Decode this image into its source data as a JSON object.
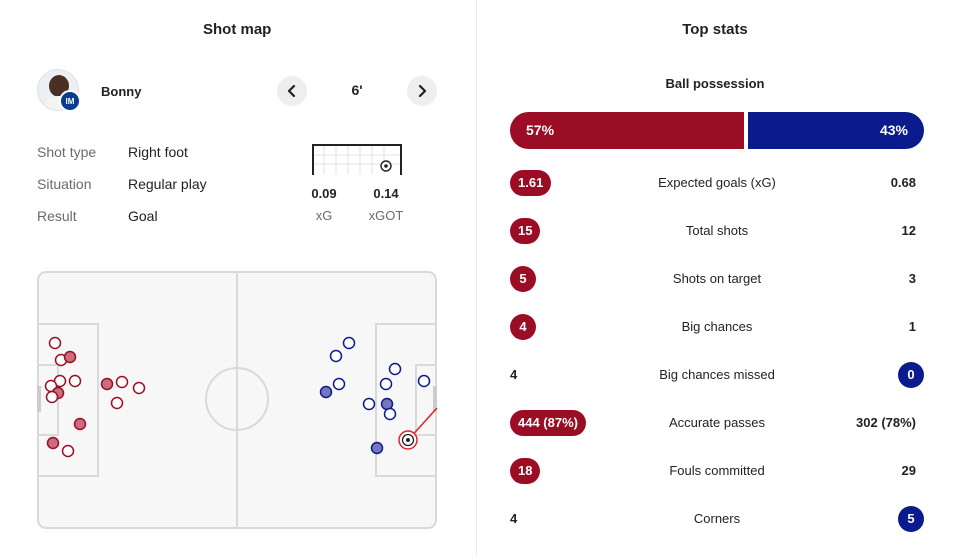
{
  "shot_map": {
    "title": "Shot map",
    "player": {
      "name": "Bonny",
      "badge": "IM"
    },
    "minute": "6'",
    "shot_type_label": "Shot type",
    "shot_type": "Right foot",
    "situation_label": "Situation",
    "situation": "Regular play",
    "result_label": "Result",
    "result": "Goal",
    "xg": "0.09",
    "xg_label": "xG",
    "xgot": "0.14",
    "xgot_label": "xGOT",
    "colors": {
      "home": "#9b0d25",
      "away": "#0b1a8c",
      "selected": "#e0232b"
    }
  },
  "top_stats": {
    "title": "Top stats",
    "possession": {
      "label": "Ball possession",
      "home": "57%",
      "away": "43%",
      "home_value": 57,
      "away_value": 43
    },
    "rows": [
      {
        "name": "Expected goals (xG)",
        "home": "1.61",
        "away": "0.68",
        "highlight": "home"
      },
      {
        "name": "Total shots",
        "home": "15",
        "away": "12",
        "highlight": "home"
      },
      {
        "name": "Shots on target",
        "home": "5",
        "away": "3",
        "highlight": "home"
      },
      {
        "name": "Big chances",
        "home": "4",
        "away": "1",
        "highlight": "home"
      },
      {
        "name": "Big chances missed",
        "home": "4",
        "away": "0",
        "highlight": "away"
      },
      {
        "name": "Accurate passes",
        "home": "444 (87%)",
        "away": "302 (78%)",
        "highlight": "home"
      },
      {
        "name": "Fouls committed",
        "home": "18",
        "away": "29",
        "highlight": "home"
      },
      {
        "name": "Corners",
        "home": "4",
        "away": "5",
        "highlight": "away"
      }
    ]
  }
}
